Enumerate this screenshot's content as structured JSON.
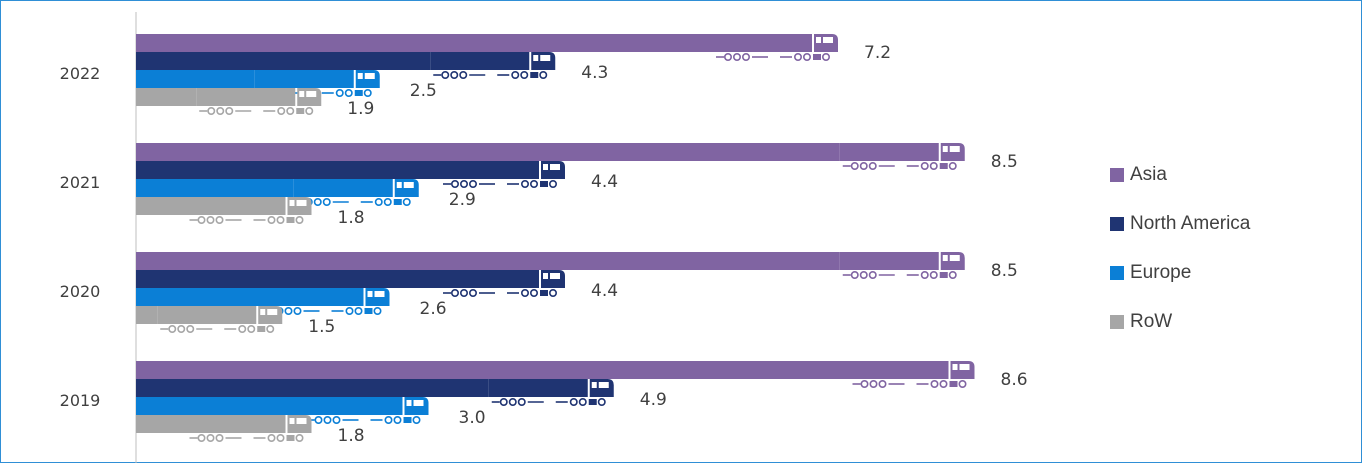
{
  "chart_data": {
    "type": "bar",
    "orientation": "horizontal",
    "categories": [
      "2022",
      "2021",
      "2020",
      "2019"
    ],
    "series": [
      {
        "name": "Asia",
        "color": "#8064a2",
        "values": [
          7.2,
          8.5,
          8.5,
          8.6
        ],
        "labels": [
          "7.2",
          "8.5",
          "8.5",
          "8.6"
        ]
      },
      {
        "name": "North America",
        "color": "#1f3472",
        "values": [
          4.3,
          4.4,
          4.4,
          4.9
        ],
        "labels": [
          "4.3",
          "4.4",
          "4.4",
          "4.9"
        ]
      },
      {
        "name": "Europe",
        "color": "#0b7fd6",
        "values": [
          2.5,
          2.9,
          2.6,
          3.0
        ],
        "labels": [
          "2.5",
          "2.9",
          "2.6",
          "3.0"
        ]
      },
      {
        "name": "RoW",
        "color": "#a6a6a6",
        "values": [
          1.9,
          1.8,
          1.5,
          1.8
        ],
        "labels": [
          "1.9",
          "1.8",
          "1.5",
          "1.8"
        ]
      }
    ],
    "bar_decoration": "truck-icon",
    "xlim": [
      0,
      10
    ],
    "grid": false,
    "legend_position": "right"
  }
}
